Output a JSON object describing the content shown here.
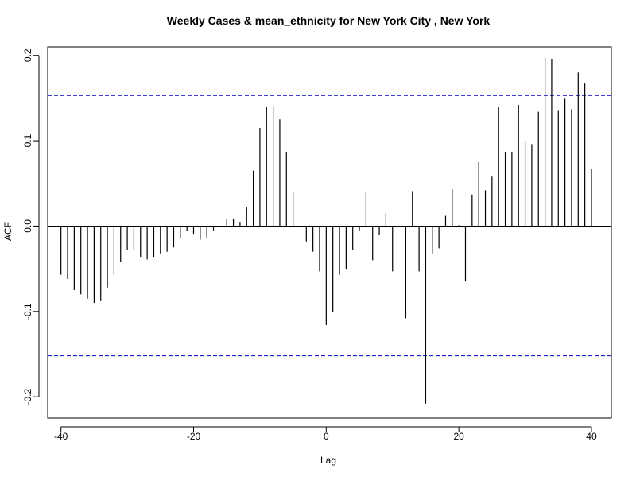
{
  "chart_data": {
    "type": "bar",
    "title": "Weekly Cases & mean_ethnicity for New York City , New York",
    "xlabel": "Lag",
    "ylabel": "ACF",
    "xlim": [
      -42,
      43
    ],
    "ylim": [
      -0.225,
      0.21
    ],
    "x_ticks": [
      -40,
      -20,
      0,
      20,
      40
    ],
    "y_ticks": [
      -0.2,
      -0.1,
      0.0,
      0.1,
      0.2
    ],
    "x_tick_labels": [
      "-40",
      "-20",
      "0",
      "20",
      "40"
    ],
    "y_tick_labels": [
      "-0.2",
      "-0.1",
      "0.0",
      "0.1",
      "0.2"
    ],
    "confidence_limits": [
      0.153,
      -0.152
    ],
    "confidence_color": "#0000cc",
    "bar_color": "#000000",
    "zero_line_color": "#000000",
    "x": [
      -40,
      -39,
      -38,
      -37,
      -36,
      -35,
      -34,
      -33,
      -32,
      -31,
      -30,
      -29,
      -28,
      -27,
      -26,
      -25,
      -24,
      -23,
      -22,
      -21,
      -20,
      -19,
      -18,
      -17,
      -16,
      -15,
      -14,
      -13,
      -12,
      -11,
      -10,
      -9,
      -8,
      -7,
      -6,
      -5,
      -4,
      -3,
      -2,
      -1,
      0,
      1,
      2,
      3,
      4,
      5,
      6,
      7,
      8,
      9,
      10,
      11,
      12,
      13,
      14,
      15,
      16,
      17,
      18,
      19,
      20,
      21,
      22,
      23,
      24,
      25,
      26,
      27,
      28,
      29,
      30,
      31,
      32,
      33,
      34,
      35,
      36,
      37,
      38,
      39,
      40
    ],
    "values": [
      -0.057,
      -0.062,
      -0.075,
      -0.08,
      -0.085,
      -0.09,
      -0.087,
      -0.072,
      -0.057,
      -0.042,
      -0.028,
      -0.028,
      -0.036,
      -0.039,
      -0.036,
      -0.032,
      -0.03,
      -0.025,
      -0.014,
      -0.006,
      -0.009,
      -0.016,
      -0.014,
      -0.005,
      -0.001,
      0.008,
      0.008,
      0.005,
      0.022,
      0.065,
      0.115,
      0.14,
      0.141,
      0.125,
      0.087,
      0.039,
      -0.001,
      -0.018,
      -0.03,
      -0.053,
      -0.116,
      -0.101,
      -0.057,
      -0.05,
      -0.028,
      -0.005,
      0.039,
      -0.04,
      -0.01,
      0.015,
      -0.053,
      0.0,
      -0.108,
      0.041,
      -0.053,
      -0.208,
      -0.032,
      -0.026,
      0.012,
      0.043,
      0.001,
      -0.065,
      0.037,
      0.075,
      0.042,
      0.058,
      0.14,
      0.087,
      0.087,
      0.142,
      0.1,
      0.096,
      0.134,
      0.197,
      0.196,
      0.136,
      0.15,
      0.137,
      0.18,
      0.167,
      0.067
    ]
  }
}
